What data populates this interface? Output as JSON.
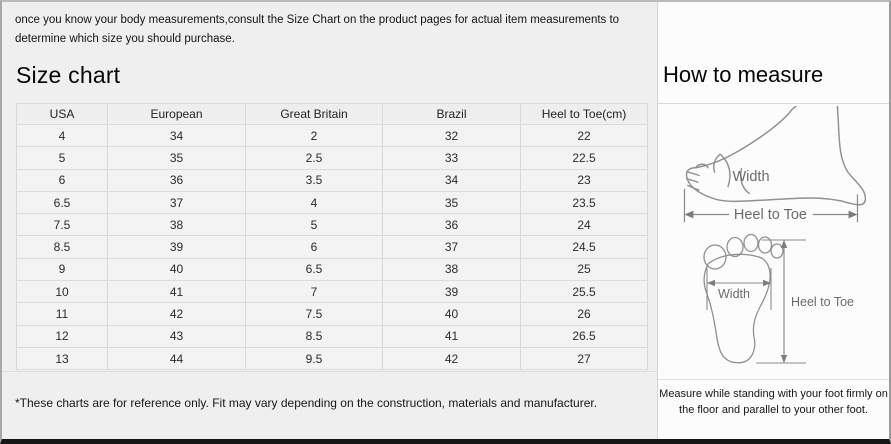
{
  "page": {
    "intro": "once you know your body measurements,consult the Size Chart on the product pages for actual item measurements to determine which size you should purchase."
  },
  "size_chart": {
    "title": "Size chart",
    "columns": [
      "USA",
      "European",
      "Great Britain",
      "Brazil",
      "Heel to Toe(cm)"
    ],
    "rows": [
      [
        "4",
        "34",
        "2",
        "32",
        "22"
      ],
      [
        "5",
        "35",
        "2.5",
        "33",
        "22.5"
      ],
      [
        "6",
        "36",
        "3.5",
        "34",
        "23"
      ],
      [
        "6.5",
        "37",
        "4",
        "35",
        "23.5"
      ],
      [
        "7.5",
        "38",
        "5",
        "36",
        "24"
      ],
      [
        "8.5",
        "39",
        "6",
        "37",
        "24.5"
      ],
      [
        "9",
        "40",
        "6.5",
        "38",
        "25"
      ],
      [
        "10",
        "41",
        "7",
        "39",
        "25.5"
      ],
      [
        "11",
        "42",
        "7.5",
        "40",
        "26"
      ],
      [
        "12",
        "43",
        "8.5",
        "41",
        "26.5"
      ],
      [
        "13",
        "44",
        "9.5",
        "42",
        "27"
      ]
    ],
    "footnote": "*These charts are for reference only. Fit may vary depending on the construction, materials and manufacturer."
  },
  "how_to_measure": {
    "title": "How to measure",
    "side_view": {
      "width_label": "Width",
      "length_label": "Heel to Toe"
    },
    "top_view": {
      "width_label": "Width",
      "length_label": "Heel to Toe"
    },
    "note": "Measure while standing with your foot firmly on the floor and parallel to your other foot."
  },
  "colors": {
    "left_panel_bg": "#f0eff0",
    "right_panel_bg": "#fdfcfd",
    "table_border": "#d9d8d9",
    "bottom_bar": "#161616",
    "diagram_stroke": "#909090"
  }
}
